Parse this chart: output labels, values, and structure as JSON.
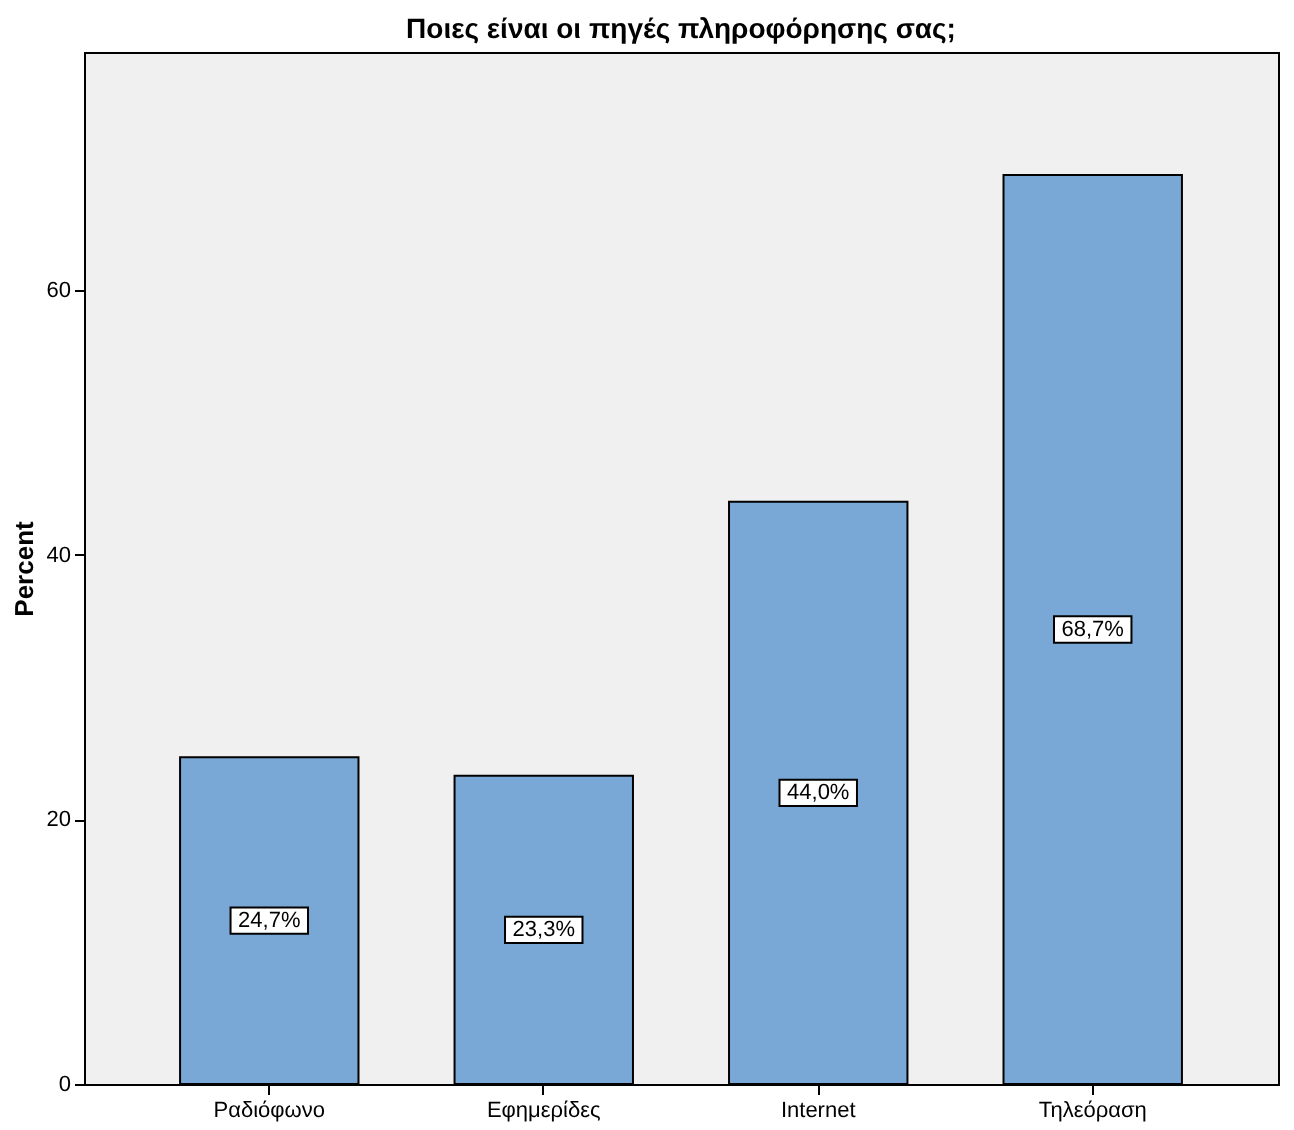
{
  "chart_data": {
    "type": "bar",
    "title": "Ποιες είναι οι πηγές πληροφόρησης σας;",
    "ylabel": "Percent",
    "categories": [
      "Ραδιόφωνο",
      "Εφημερίδες",
      "Internet",
      "Τηλεόραση"
    ],
    "values": [
      24.7,
      23.3,
      44.0,
      68.7
    ],
    "value_labels": [
      "24,7%",
      "23,3%",
      "44,0%",
      "68,7%"
    ],
    "color": "#79a8d6",
    "ylim": [
      0,
      78
    ],
    "yticks": [
      0,
      20,
      40,
      60
    ],
    "grid": false
  }
}
